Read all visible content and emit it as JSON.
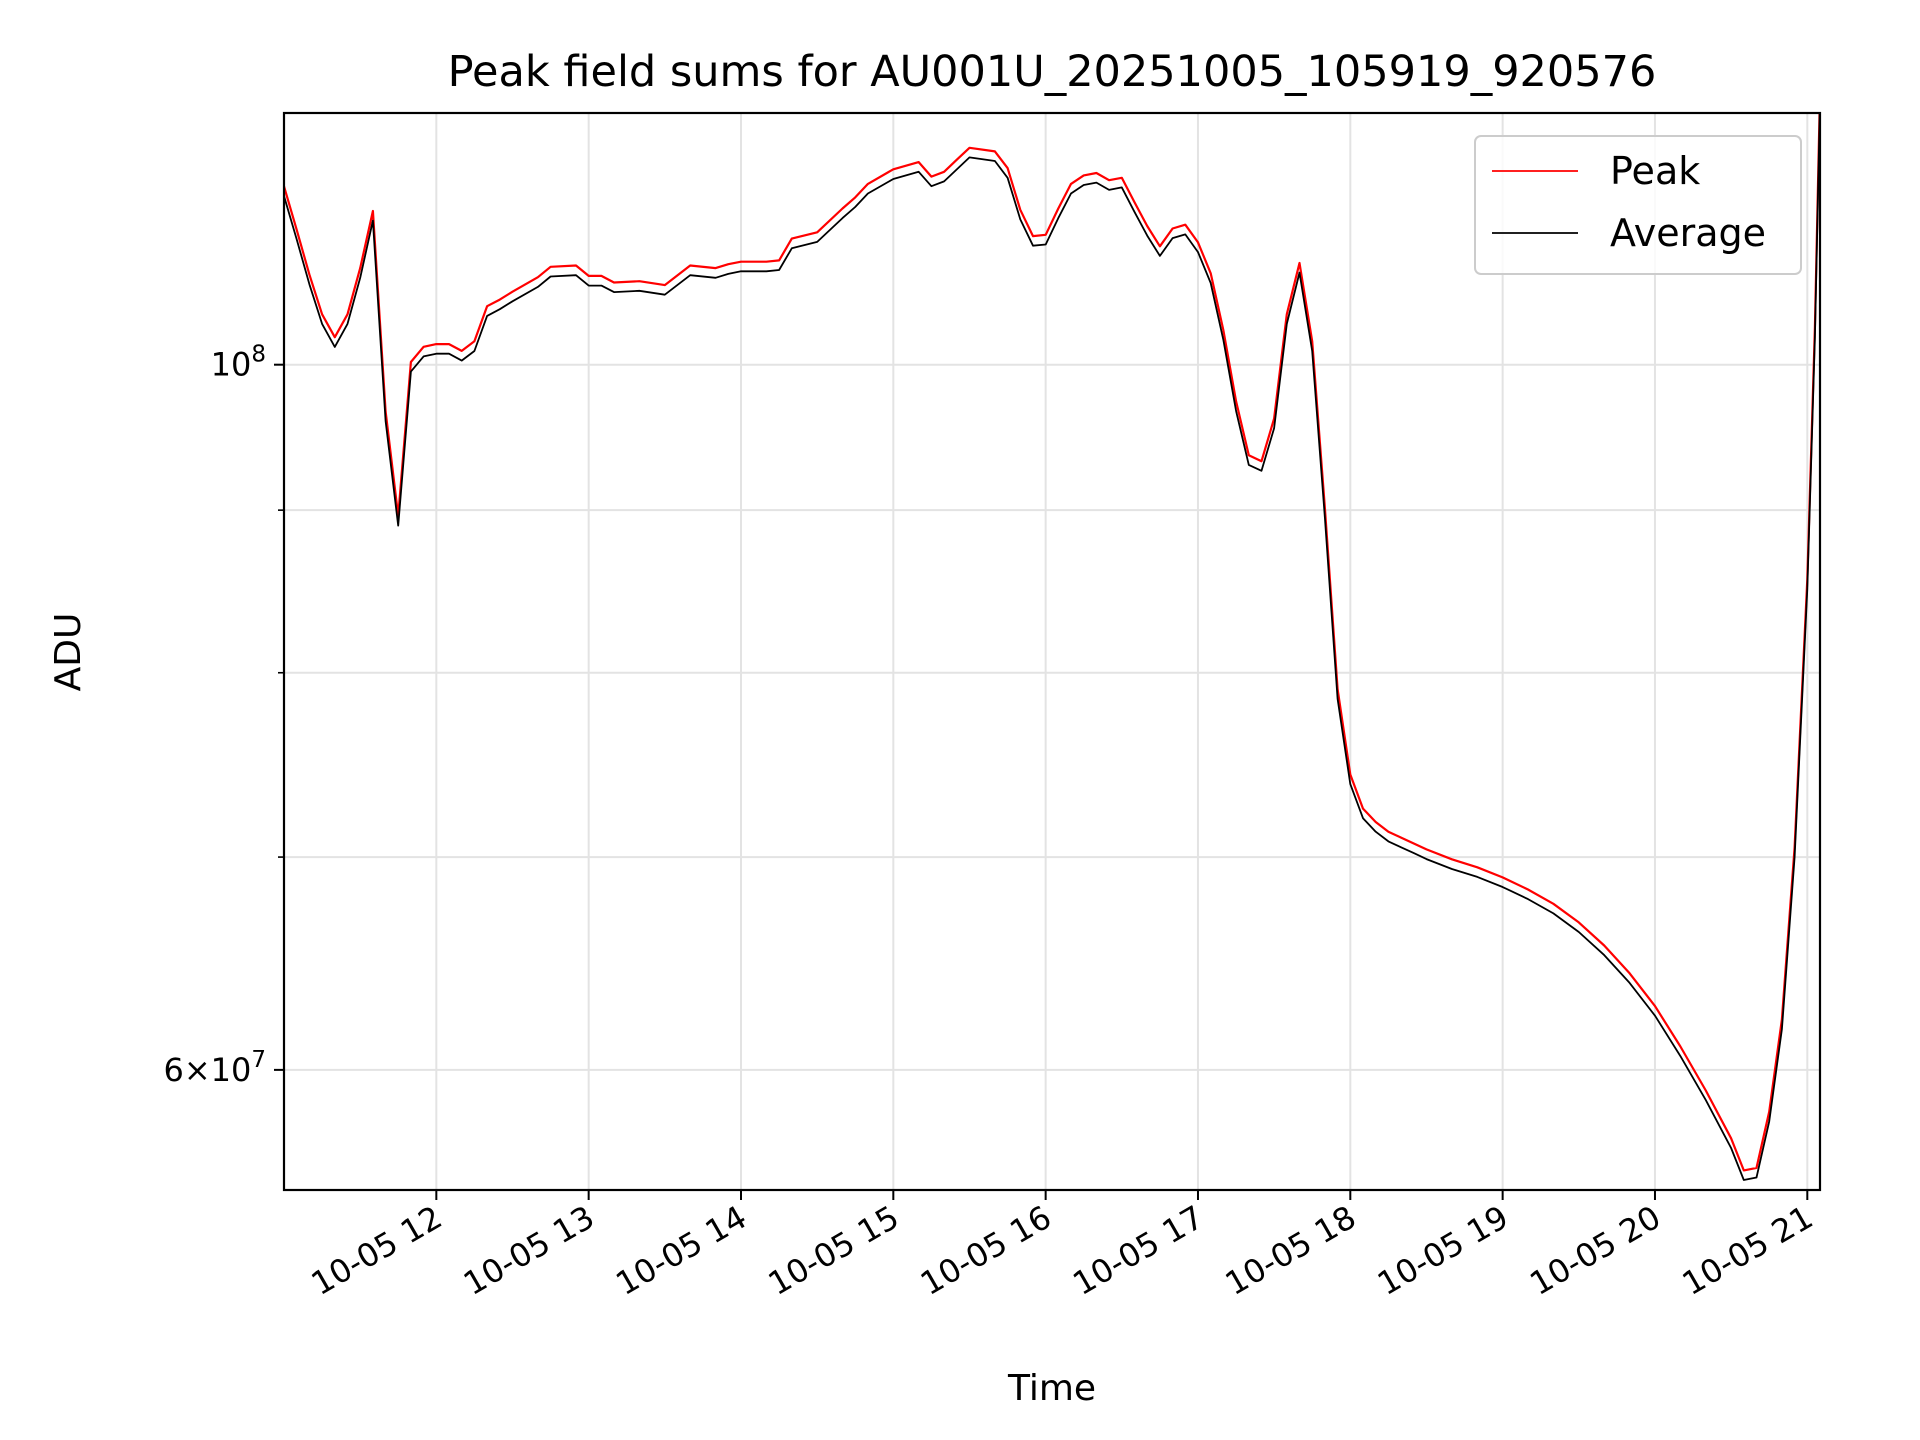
{
  "chart_data": {
    "type": "line",
    "title": "Peak field sums for AU001U_20251005_105919_920576",
    "xlabel": "Time",
    "ylabel": "ADU",
    "yscale": "log",
    "grid": true,
    "legend_position": "top-right",
    "xlim": [
      "2025-10-05 11:00",
      "2025-10-05 21:05"
    ],
    "ylim": [
      55000000,
      120000000
    ],
    "x_ticks": [
      "10-05 12",
      "10-05 13",
      "10-05 14",
      "10-05 15",
      "10-05 16",
      "10-05 17",
      "10-05 18",
      "10-05 19",
      "10-05 20",
      "10-05 21"
    ],
    "x_tick_rotation": 30,
    "y_major_tick_labels": [
      {
        "value": 100000000,
        "base": "10",
        "exp": "8",
        "prefix": ""
      },
      {
        "value": 60000000,
        "base": "10",
        "exp": "7",
        "prefix": "6×"
      }
    ],
    "y_minor_ticks": [
      70000000,
      80000000,
      90000000
    ],
    "series": [
      {
        "name": "Peak",
        "color": "#ff0000"
      },
      {
        "name": "Average",
        "color": "#000000"
      }
    ],
    "x": [
      "11:00",
      "11:05",
      "11:10",
      "11:15",
      "11:20",
      "11:25",
      "11:30",
      "11:35",
      "11:40",
      "11:45",
      "11:50",
      "11:55",
      "12:00",
      "12:05",
      "12:10",
      "12:15",
      "12:20",
      "12:25",
      "12:30",
      "12:40",
      "12:45",
      "12:55",
      "13:00",
      "13:05",
      "13:10",
      "13:20",
      "13:30",
      "13:40",
      "13:50",
      "13:55",
      "14:00",
      "14:10",
      "14:15",
      "14:20",
      "14:30",
      "14:40",
      "14:45",
      "14:50",
      "15:00",
      "15:10",
      "15:15",
      "15:20",
      "15:25",
      "15:30",
      "15:40",
      "15:45",
      "15:50",
      "15:55",
      "16:00",
      "16:05",
      "16:10",
      "16:15",
      "16:20",
      "16:25",
      "16:30",
      "16:35",
      "16:40",
      "16:45",
      "16:50",
      "16:55",
      "17:00",
      "17:05",
      "17:10",
      "17:15",
      "17:20",
      "17:25",
      "17:30",
      "17:35",
      "17:40",
      "17:45",
      "17:50",
      "17:55",
      "18:00",
      "18:05",
      "18:10",
      "18:15",
      "18:20",
      "18:25",
      "18:30",
      "18:40",
      "18:50",
      "19:00",
      "19:10",
      "19:20",
      "19:30",
      "19:40",
      "19:50",
      "20:00",
      "20:10",
      "20:20",
      "20:30",
      "20:35",
      "20:40",
      "20:45",
      "20:50",
      "20:55",
      "21:00",
      "21:03",
      "21:05"
    ],
    "average": [
      113000000,
      109500000,
      106000000,
      103000000,
      101300000,
      103000000,
      106500000,
      111000000,
      96000000,
      89000000,
      99500000,
      100600000,
      100800000,
      100800000,
      100300000,
      101000000,
      103600000,
      104100000,
      104700000,
      105800000,
      106600000,
      106700000,
      105900000,
      105900000,
      105400000,
      105500000,
      105200000,
      106700000,
      106500000,
      106800000,
      107000000,
      107000000,
      107100000,
      108800000,
      109300000,
      111200000,
      112100000,
      113200000,
      114400000,
      115000000,
      113800000,
      114200000,
      115200000,
      116200000,
      115900000,
      114500000,
      111100000,
      109000000,
      109100000,
      111200000,
      113200000,
      113900000,
      114100000,
      113500000,
      113700000,
      111700000,
      109800000,
      108200000,
      109600000,
      109900000,
      108500000,
      106100000,
      101800000,
      96700000,
      93000000,
      92600000,
      95500000,
      103000000,
      106900000,
      101000000,
      89500000,
      78500000,
      73800000,
      72000000,
      71300000,
      70800000,
      70500000,
      70200000,
      69900000,
      69400000,
      69000000,
      68500000,
      67900000,
      67200000,
      66300000,
      65200000,
      63900000,
      62400000,
      60600000,
      58700000,
      56700000,
      55400000,
      55500000,
      57800000,
      61800000,
      70000000,
      85000000,
      102000000,
      121000000
    ],
    "peak_offset_ratio": 0.007
  }
}
